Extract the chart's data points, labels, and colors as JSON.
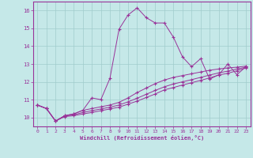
{
  "xlabel": "Windchill (Refroidissement éolien,°C)",
  "bg_color": "#c5e8e8",
  "grid_color": "#a0cccc",
  "line_color": "#993399",
  "xlim": [
    -0.5,
    23.5
  ],
  "ylim": [
    9.5,
    16.5
  ],
  "xticks": [
    0,
    1,
    2,
    3,
    4,
    5,
    6,
    7,
    8,
    9,
    10,
    11,
    12,
    13,
    14,
    15,
    16,
    17,
    18,
    19,
    20,
    21,
    22,
    23
  ],
  "yticks": [
    10,
    11,
    12,
    13,
    14,
    15,
    16
  ],
  "series": [
    [
      10.7,
      10.5,
      9.8,
      10.1,
      10.2,
      10.4,
      11.1,
      11.0,
      12.2,
      14.95,
      15.75,
      16.15,
      15.6,
      15.3,
      15.3,
      14.5,
      13.4,
      12.85,
      13.3,
      12.15,
      12.4,
      13.0,
      12.4,
      12.85
    ],
    [
      10.7,
      10.5,
      9.8,
      10.1,
      10.2,
      10.4,
      10.5,
      10.6,
      10.7,
      10.85,
      11.1,
      11.4,
      11.65,
      11.9,
      12.1,
      12.25,
      12.35,
      12.45,
      12.55,
      12.65,
      12.72,
      12.78,
      12.82,
      12.88
    ],
    [
      10.7,
      10.5,
      9.8,
      10.08,
      10.15,
      10.28,
      10.38,
      10.48,
      10.58,
      10.7,
      10.88,
      11.08,
      11.3,
      11.52,
      11.72,
      11.88,
      12.0,
      12.12,
      12.25,
      12.38,
      12.5,
      12.6,
      12.72,
      12.82
    ],
    [
      10.7,
      10.5,
      9.8,
      10.05,
      10.1,
      10.2,
      10.28,
      10.38,
      10.48,
      10.58,
      10.75,
      10.92,
      11.12,
      11.32,
      11.55,
      11.68,
      11.82,
      11.95,
      12.08,
      12.22,
      12.38,
      12.48,
      12.62,
      12.78
    ]
  ]
}
